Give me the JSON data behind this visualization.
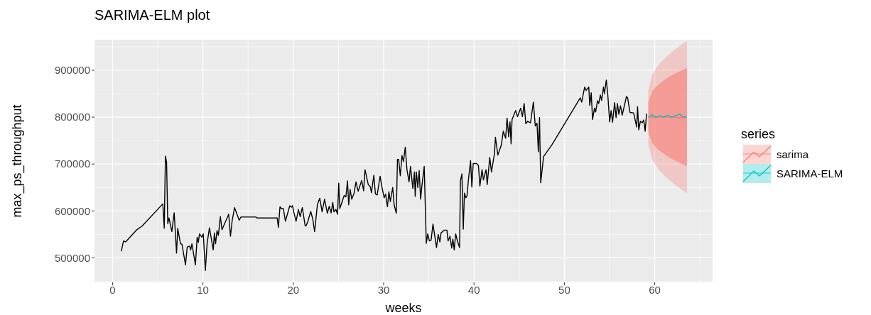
{
  "chart_data": {
    "type": "line",
    "title": "SARIMA-ELM plot",
    "xlabel": "weeks",
    "ylabel": "max_ps_throughput",
    "legend_title": "series",
    "xlim": [
      -2,
      66.4
    ],
    "ylim": [
      447700,
      965000
    ],
    "xticks": [
      0,
      10,
      20,
      30,
      40,
      50,
      60
    ],
    "yticks": [
      500000,
      600000,
      700000,
      800000,
      900000
    ],
    "grid": true,
    "legend": "right",
    "series": [
      {
        "color": "#000000",
        "x": [
          0.97,
          1.21,
          1.45,
          2.63,
          3.28,
          5.56,
          5.72,
          5.85,
          5.98,
          6.11,
          6.24,
          6.56,
          6.82,
          7.08,
          7.21,
          7.52,
          7.68,
          8.07,
          8.26,
          8.52,
          8.65,
          8.78,
          9.17,
          9.36,
          9.49,
          9.62,
          9.88,
          10.04,
          10.27,
          10.46,
          10.72,
          11.14,
          11.27,
          11.4,
          11.56,
          11.71,
          11.93,
          12.11,
          12.85,
          13.05,
          13.24,
          13.5,
          14.02,
          14.21,
          15.86,
          15.99,
          18.22,
          18.35,
          18.53,
          18.69,
          18.9,
          19.13,
          19.61,
          19.79,
          19.92,
          20.05,
          20.31,
          20.57,
          20.76,
          21.0,
          21.31,
          21.41,
          21.62,
          21.93,
          22.15,
          22.36,
          22.67,
          22.93,
          23.19,
          23.46,
          23.77,
          23.98,
          24.19,
          24.37,
          24.5,
          24.72,
          24.9,
          25.03,
          25.15,
          25.63,
          25.82,
          26.0,
          26.13,
          26.29,
          26.47,
          26.73,
          26.94,
          27.18,
          27.57,
          27.78,
          27.94,
          28.3,
          28.51,
          28.65,
          28.91,
          29.09,
          29.28,
          29.61,
          29.79,
          30.06,
          30.22,
          30.42,
          30.58,
          30.74,
          31.0,
          31.16,
          31.4,
          31.53,
          31.66,
          31.84,
          32.03,
          32.19,
          32.39,
          32.58,
          32.81,
          32.97,
          33.23,
          33.41,
          33.49,
          33.62,
          33.78,
          33.93,
          34.09,
          34.25,
          34.49,
          34.72,
          34.88,
          35.06,
          35.25,
          35.46,
          35.85,
          36.04,
          36.22,
          36.35,
          36.69,
          37.0,
          37.13,
          37.34,
          37.53,
          37.66,
          37.81,
          37.97,
          38.18,
          38.4,
          38.5,
          38.66,
          38.81,
          38.94,
          39.1,
          39.23,
          39.39,
          39.62,
          39.76,
          39.91,
          40.28,
          40.49,
          40.65,
          40.89,
          41.04,
          41.33,
          41.46,
          41.74,
          41.93,
          42.27,
          42.37,
          42.64,
          43.03,
          43.24,
          43.5,
          43.66,
          43.84,
          43.98,
          44.1,
          44.21,
          44.61,
          44.81,
          45.16,
          45.36,
          45.55,
          45.73,
          45.94,
          46.25,
          46.57,
          46.78,
          46.97,
          47.12,
          47.25,
          47.38,
          47.7,
          48.62,
          51.76,
          51.92,
          52.24,
          52.42,
          52.7,
          52.81,
          52.97,
          53.12,
          53.33,
          53.46,
          53.67,
          53.8,
          53.99,
          54.12,
          54.33,
          54.43,
          54.64,
          54.8,
          55.01,
          55.17,
          55.33,
          55.56,
          55.72,
          55.87,
          56.03,
          56.21,
          56.4,
          56.87,
          57.0,
          57.26,
          57.66,
          58.0,
          58.1,
          58.23,
          58.41,
          58.62,
          58.78,
          58.94,
          59.09,
          59.17
        ],
        "values": [
          514000,
          536000,
          534000,
          559000,
          568000,
          615000,
          563000,
          717000,
          703000,
          573000,
          585000,
          556000,
          596000,
          510000,
          563000,
          530000,
          529000,
          485000,
          523000,
          525000,
          517000,
          530000,
          485000,
          544000,
          533000,
          551000,
          544000,
          551000,
          473000,
          530000,
          564000,
          517000,
          553000,
          530000,
          558000,
          548000,
          588000,
          560000,
          593000,
          546000,
          580000,
          607000,
          580000,
          587000,
          587000,
          585000,
          585000,
          565000,
          609000,
          605000,
          605000,
          578000,
          611000,
          608000,
          611000,
          598000,
          578000,
          603000,
          588000,
          607000,
          569000,
          568000,
          578000,
          599000,
          583000,
          556000,
          614000,
          627000,
          598000,
          625000,
          595000,
          610000,
          596000,
          618000,
          598000,
          603000,
          593000,
          659000,
          605000,
          633000,
          630000,
          664000,
          613000,
          646000,
          625000,
          638000,
          662000,
          642000,
          665000,
          643000,
          688000,
          656000,
          652000,
          639000,
          676000,
          636000,
          634000,
          674000,
          653000,
          628000,
          636000,
          609000,
          641000,
          620000,
          650000,
          613000,
          595000,
          710000,
          710000,
          675000,
          718000,
          705000,
          736000,
          688000,
          662000,
          695000,
          648000,
          683000,
          631000,
          683000,
          650000,
          686000,
          625000,
          656000,
          695000,
          531000,
          551000,
          536000,
          538000,
          572000,
          522000,
          550000,
          534000,
          553000,
          559000,
          559000,
          536000,
          546000,
          521000,
          540000,
          517000,
          551000,
          535000,
          522000,
          665000,
          679000,
          561000,
          638000,
          628000,
          633000,
          668000,
          707000,
          651000,
          701000,
          701000,
          697000,
          653000,
          688000,
          666000,
          688000,
          656000,
          714000,
          683000,
          723000,
          757000,
          719000,
          741000,
          770000,
          755000,
          798000,
          758000,
          790000,
          743000,
          795000,
          814000,
          801000,
          819000,
          801000,
          829000,
          786000,
          791000,
          788000,
          832000,
          781000,
          787000,
          726000,
          799000,
          660000,
          716000,
          741000,
          841000,
          832000,
          864000,
          857000,
          864000,
          825000,
          852000,
          795000,
          819000,
          811000,
          835000,
          829000,
          847000,
          836000,
          864000,
          850000,
          879000,
          849000,
          790000,
          814000,
          789000,
          831000,
          799000,
          829000,
          806000,
          824000,
          804000,
          844000,
          841000,
          810000,
          809000,
          779000,
          822000,
          773000,
          791000,
          788000,
          794000,
          770000,
          806000,
          806000
        ]
      },
      {
        "type": "area",
        "color": "#f8766d",
        "x": [
          59.29,
          59.71,
          60.14,
          60.57,
          61.0,
          61.43,
          61.86,
          62.29,
          62.71,
          63.14,
          63.57
        ],
        "values": [
          null,
          null,
          null,
          null,
          null,
          null,
          null,
          null,
          null,
          null,
          null
        ],
        "lower": [
          768000,
          745000,
          735000,
          728000,
          722000,
          716000,
          711000,
          707000,
          703000,
          699000,
          695000
        ],
        "upper": [
          832000,
          855000,
          865000,
          872000,
          878000,
          884000,
          889000,
          893000,
          897000,
          901000,
          905000
        ]
      },
      {
        "name": "sarima",
        "color": "#f8766d",
        "x": [
          59.29,
          59.71,
          60.14,
          60.57,
          61.0,
          61.43,
          61.86,
          62.29,
          62.71,
          63.14,
          63.57
        ],
        "values": [
          801000,
          800000,
          800000,
          800000,
          800000,
          800000,
          800000,
          800000,
          799000,
          799000,
          799000
        ],
        "lower": [
          743000,
          710000,
          696000,
          685000,
          677000,
          669000,
          662000,
          655000,
          649000,
          643000,
          638000
        ],
        "upper": [
          857000,
          890000,
          904000,
          915000,
          923000,
          931000,
          938000,
          945000,
          951000,
          957000,
          962000
        ]
      },
      {
        "name": "SARIMA-ELM",
        "color": "#00bfc4",
        "x": [
          59.29,
          59.71,
          60.14,
          60.57,
          61.0,
          61.43,
          61.86,
          62.29,
          62.71,
          63.14,
          63.57
        ],
        "values": [
          799000,
          805000,
          800000,
          803000,
          800000,
          804000,
          800000,
          803000,
          806000,
          801000,
          800000
        ]
      }
    ]
  }
}
